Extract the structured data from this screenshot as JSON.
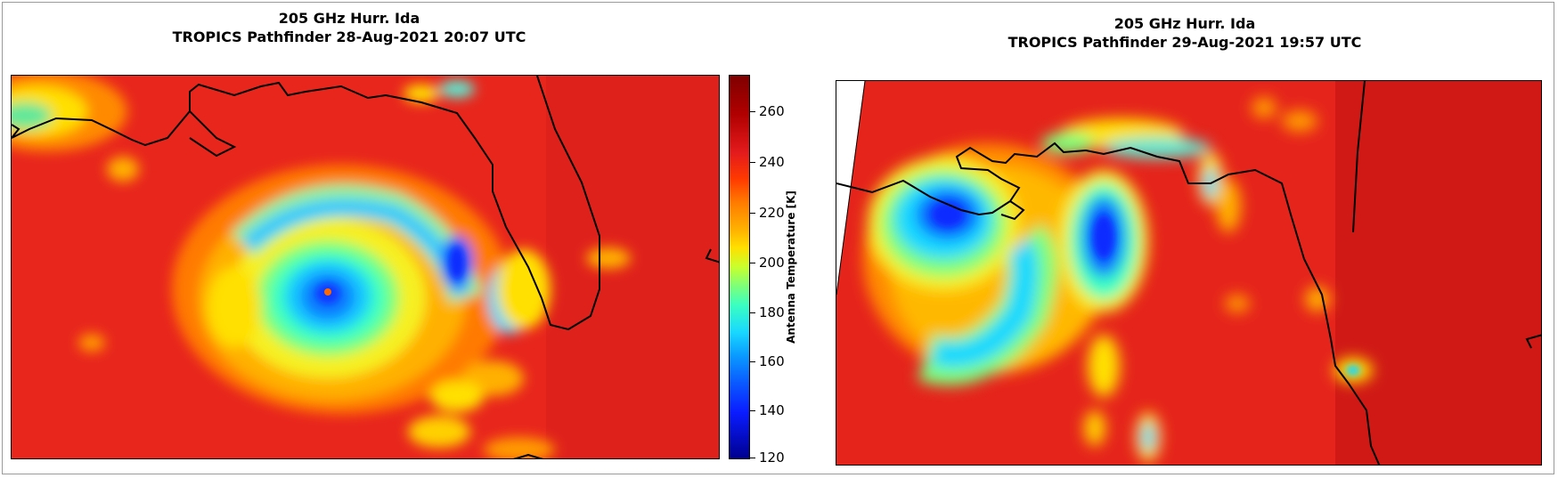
{
  "left_panel": {
    "title_line1": "205 GHz Hurr. Ida",
    "title_line2": "TROPICS Pathfinder 28-Aug-2021 20:07 UTC"
  },
  "right_panel": {
    "title_line1": "205 GHz Hurr. Ida",
    "title_line2": "TROPICS Pathfinder 29-Aug-2021 19:57 UTC"
  },
  "colorbar": {
    "label": "Antenna Temperature [K]",
    "ticks": [
      "260",
      "240",
      "220",
      "200",
      "180",
      "160",
      "140",
      "120"
    ],
    "min": 120,
    "max": 272
  },
  "colors": {
    "background_warm": "#e8261c",
    "coastline": "#000000"
  }
}
